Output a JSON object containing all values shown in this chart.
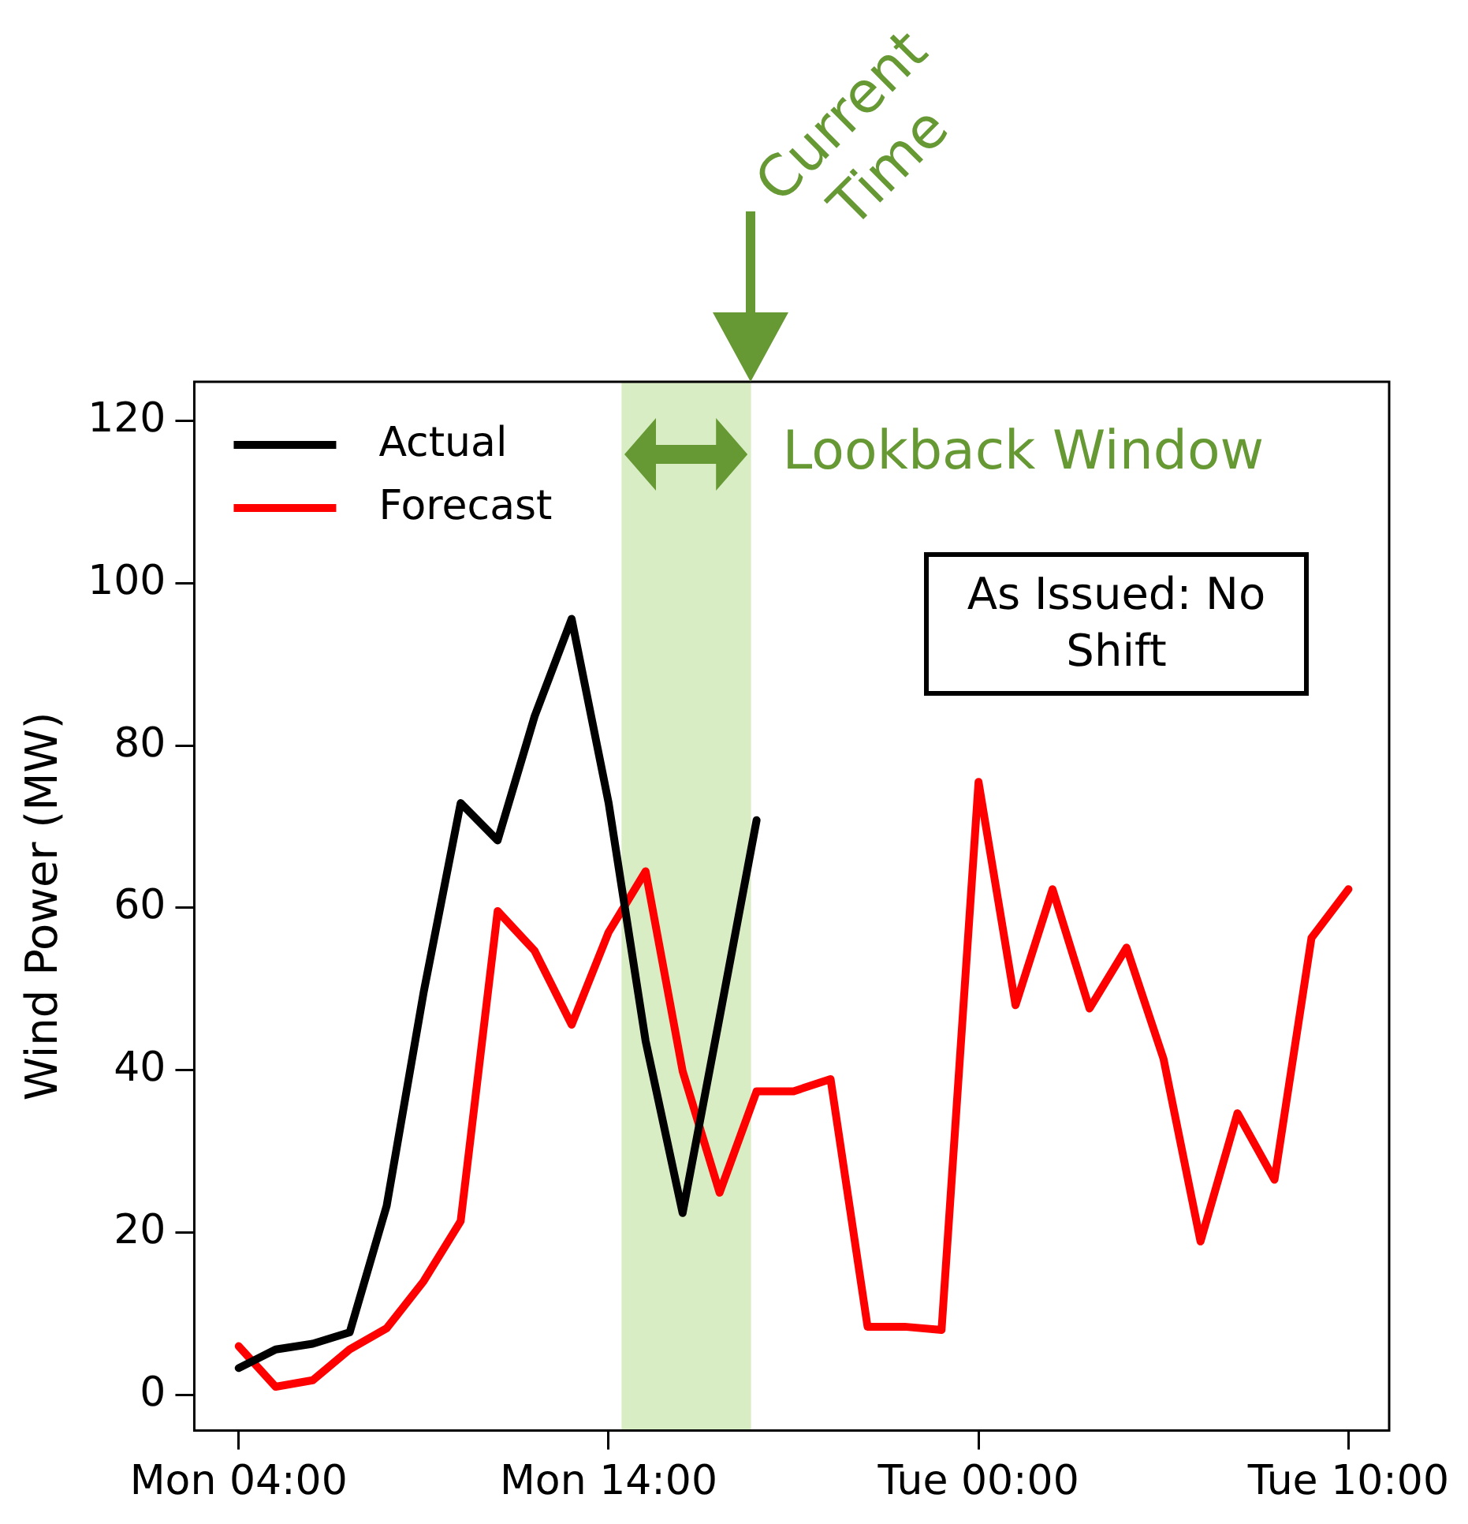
{
  "chart_data": {
    "type": "line",
    "ylabel": "Wind Power (MW)",
    "categories": [
      "Mon 04:00",
      null,
      null,
      null,
      null,
      null,
      null,
      null,
      null,
      null,
      "Mon 14:00",
      null,
      null,
      null,
      null,
      null,
      null,
      null,
      null,
      null,
      "Tue 00:00",
      null,
      null,
      null,
      null,
      null,
      null,
      null,
      null,
      null,
      "Tue 10:00"
    ],
    "ylim": [
      -4.4,
      124.8
    ],
    "yticks": [
      0,
      20,
      40,
      60,
      80,
      100,
      120
    ],
    "grid": false,
    "legend": "top left",
    "line_style": "solid",
    "marker": "none",
    "series": [
      {
        "name": "Actual",
        "color": "#000000",
        "values": [
          3.3,
          5.6,
          6.3,
          7.7,
          23.3,
          49.6,
          72.9,
          68.3,
          83.6,
          95.6,
          72.9,
          43.6,
          22.4,
          46.5,
          70.8,
          null,
          null,
          null,
          null,
          null,
          null,
          null,
          null,
          null,
          null,
          null,
          null,
          null,
          null,
          null,
          null
        ]
      },
      {
        "name": "Forecast",
        "color": "#ff0000",
        "values": [
          6.0,
          1.0,
          1.8,
          5.6,
          8.2,
          14.0,
          21.4,
          59.6,
          54.7,
          45.6,
          57.0,
          64.5,
          39.9,
          24.9,
          37.4,
          37.4,
          38.9,
          8.4,
          8.4,
          8.0,
          75.5,
          48.0,
          62.3,
          47.6,
          55.1,
          41.4,
          18.9,
          34.7,
          26.5,
          56.3,
          62.3
        ]
      }
    ],
    "annotations": [
      "Current Time",
      "Lookback Window",
      "As Issued: No Shift"
    ]
  }
}
